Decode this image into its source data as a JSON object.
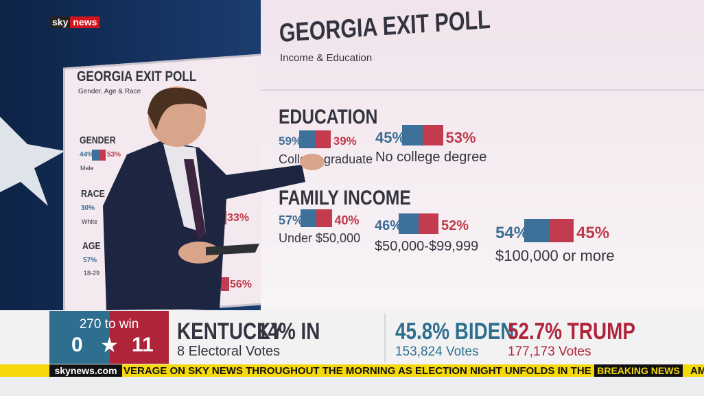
{
  "logo": {
    "brand": "sky",
    "sub": "news"
  },
  "main_board": {
    "title": "GEORGIA EXIT POLL",
    "subtitle": "Income & Education",
    "sections": [
      {
        "heading": "EDUCATION",
        "items": [
          {
            "dem": "59%",
            "rep": "39%",
            "label": "College graduate"
          },
          {
            "dem": "45%",
            "rep": "53%",
            "label": "No college degree"
          }
        ]
      },
      {
        "heading": "FAMILY INCOME",
        "items": [
          {
            "dem": "57%",
            "rep": "40%",
            "label": "Under $50,000"
          },
          {
            "dem": "46%",
            "rep": "52%",
            "label": "$50,000-$99,999"
          },
          {
            "dem": "54%",
            "rep": "45%",
            "label": "$100,000 or more"
          }
        ]
      }
    ]
  },
  "side_board": {
    "title": "GEORGIA EXIT POLL",
    "subtitle": "Gender, Age & Race",
    "rows": [
      {
        "heading": "GENDER",
        "dem": "44%",
        "rep": "53%",
        "label": "Male"
      },
      {
        "heading": "RACE",
        "dem": "30%",
        "label": "White",
        "other": "33%"
      },
      {
        "heading": "AGE",
        "dem": "57%",
        "label": "18-29",
        "other": "56%"
      }
    ]
  },
  "lower_third": {
    "to_win": "270 to win",
    "dem_ev": "0",
    "rep_ev": "11",
    "state": "KENTUCKY",
    "reporting": "14% IN",
    "electoral_votes": "8 Electoral Votes",
    "dem_pct": "45.8% BIDEN",
    "dem_votes": "153,824 Votes",
    "rep_pct": "52.7% TRUMP",
    "rep_votes": "177,173 Votes"
  },
  "ticker": {
    "site": "skynews.com",
    "text": "VERAGE ON SKY NEWS THROUGHOUT THE MORNING AS ELECTION NIGHT UNFOLDS IN THE U.S.",
    "flag": "BREAKING NEWS",
    "next": "AM"
  }
}
